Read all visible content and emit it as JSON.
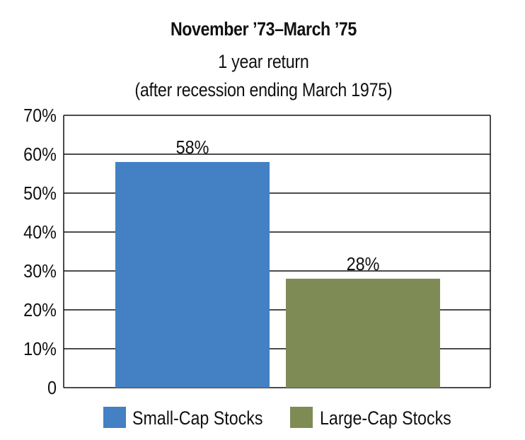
{
  "chart_data": {
    "type": "bar",
    "title": "November ’73–March ’75",
    "subtitle_lines": [
      "1 year return",
      "(after recession ending March 1975)"
    ],
    "categories": [
      "Small-Cap Stocks",
      "Large-Cap Stocks"
    ],
    "values": [
      58,
      28
    ],
    "value_labels": [
      "58%",
      "28%"
    ],
    "colors": [
      "#4380c4",
      "#7f8b55"
    ],
    "ylim": [
      0,
      70
    ],
    "yticks": [
      0,
      10,
      20,
      30,
      40,
      50,
      60,
      70
    ],
    "ytick_labels": [
      "0",
      "10%",
      "20%",
      "30%",
      "40%",
      "50%",
      "60%",
      "70%"
    ],
    "grid": true,
    "legend": {
      "placement": "bottom",
      "entries": [
        "Small-Cap Stocks",
        "Large-Cap Stocks"
      ]
    }
  }
}
